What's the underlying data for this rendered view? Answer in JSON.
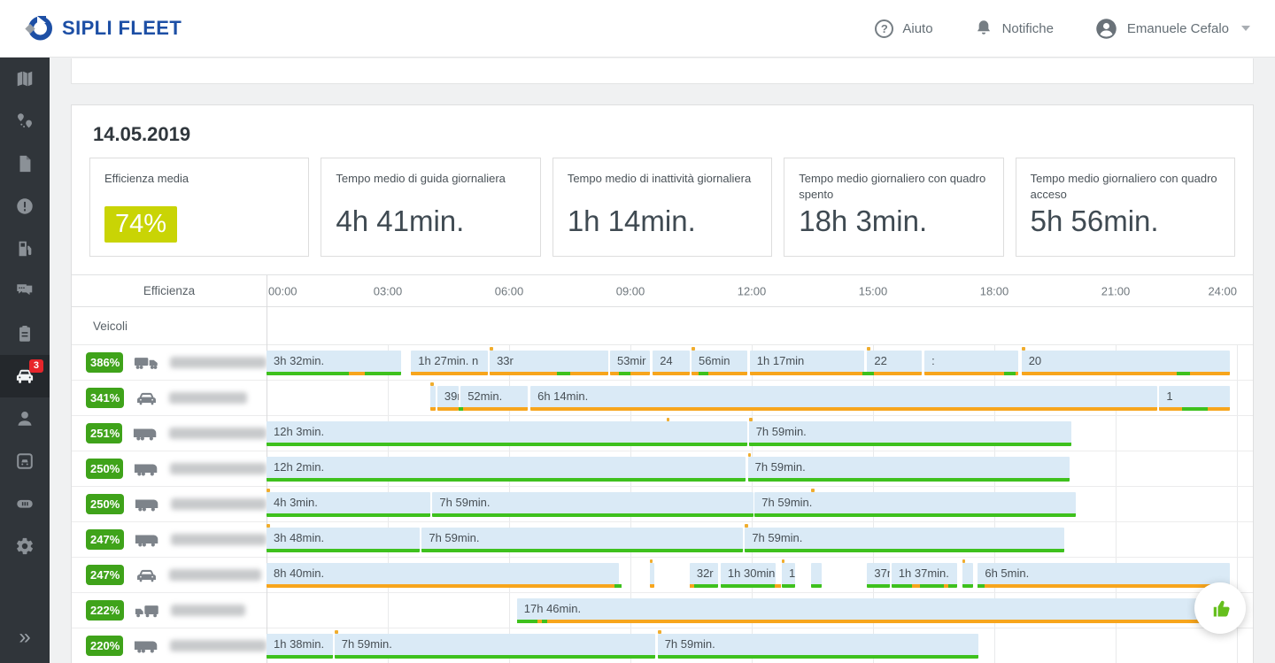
{
  "header": {
    "brand": "SIPLI FLEET",
    "help_label": "Aiuto",
    "notifications_label": "Notifiche",
    "user_name": "Emanuele Cefalo"
  },
  "sidebar": {
    "items": [
      {
        "id": "map",
        "icon": "map"
      },
      {
        "id": "routes",
        "icon": "route"
      },
      {
        "id": "documents",
        "icon": "document"
      },
      {
        "id": "alerts",
        "icon": "alert"
      },
      {
        "id": "fuel",
        "icon": "fuel"
      },
      {
        "id": "messages",
        "icon": "chat"
      },
      {
        "id": "reports",
        "icon": "clipboard"
      },
      {
        "id": "vehicles",
        "icon": "car",
        "active": true,
        "badge": "3"
      },
      {
        "id": "drivers",
        "icon": "person"
      },
      {
        "id": "fleet",
        "icon": "vehicle-square"
      },
      {
        "id": "cards",
        "icon": "tag"
      },
      {
        "id": "settings",
        "icon": "gear"
      }
    ],
    "collapse_glyph": "»"
  },
  "page": {
    "date": "14.05.2019",
    "cards": [
      {
        "title": "Efficienza media",
        "value": "74%",
        "style": "badge"
      },
      {
        "title": "Tempo medio di guida giornaliera",
        "value": "4h 41min."
      },
      {
        "title": "Tempo medio di inattività giornaliera",
        "value": "1h 14min."
      },
      {
        "title": "Tempo medio giornaliero con quadro spento",
        "value": "18h 3min."
      },
      {
        "title": "Tempo medio giornaliero con quadro acceso",
        "value": "5h 56min."
      }
    ],
    "timeline": {
      "efficiency_header": "Efficienza",
      "vehicles_header": "Veicoli",
      "hours": [
        "00:00",
        "03:00",
        "06:00",
        "09:00",
        "12:00",
        "15:00",
        "18:00",
        "21:00",
        "24:00"
      ]
    },
    "rows": [
      {
        "efficiency": "386%",
        "vehicle": "truck-trailer",
        "blur_width": 112,
        "segments": [
          {
            "l": 0,
            "w": 13.9,
            "t": "3h 32min.",
            "u": "green"
          },
          {
            "l": 14.9,
            "w": 7.9,
            "t": "1h 27min. n",
            "u": "orange"
          },
          {
            "l": 23.0,
            "w": 12.2,
            "t": "33r",
            "u": "orange"
          },
          {
            "l": 35.4,
            "w": 4.1,
            "t": "53mir",
            "u": "orange"
          },
          {
            "l": 39.8,
            "w": 3.8,
            "t": "24",
            "u": "orange"
          },
          {
            "l": 43.8,
            "w": 5.7,
            "t": "56min",
            "u": "orange"
          },
          {
            "l": 49.8,
            "w": 11.8,
            "t": "1h 17min",
            "u": "orange"
          },
          {
            "l": 61.9,
            "w": 5.6,
            "t": "22",
            "u": "orange"
          },
          {
            "l": 67.8,
            "w": 9.7,
            "t": ":",
            "u": "orange"
          },
          {
            "l": 77.8,
            "w": 21.5,
            "t": "20",
            "u": "orange"
          }
        ],
        "umarks": [
          {
            "l": 8.5,
            "w": 1.6,
            "c": "orange"
          },
          {
            "l": 29.9,
            "w": 1.4,
            "c": "green"
          },
          {
            "l": 36.3,
            "w": 1.2,
            "c": "green"
          },
          {
            "l": 44.5,
            "w": 1.0,
            "c": "green"
          },
          {
            "l": 61.4,
            "w": 1.2,
            "c": "green"
          },
          {
            "l": 76.0,
            "w": 1.2,
            "c": "green"
          },
          {
            "l": 93.8,
            "w": 1.4,
            "c": "green"
          }
        ],
        "tmarks": [
          {
            "l": 23.0,
            "w": 0.35
          },
          {
            "l": 43.8,
            "w": 0.35
          },
          {
            "l": 61.9,
            "w": 0.35
          },
          {
            "l": 77.8,
            "w": 0.35
          }
        ]
      },
      {
        "efficiency": "341%",
        "vehicle": "car",
        "blur_width": 88,
        "segments": [
          {
            "l": 16.9,
            "w": 0.5,
            "t": "",
            "u": "orange"
          },
          {
            "l": 17.6,
            "w": 2.2,
            "t": "39m",
            "u": "orange"
          },
          {
            "l": 20.0,
            "w": 6.9,
            "t": "52min.",
            "u": "orange"
          },
          {
            "l": 27.2,
            "w": 64.6,
            "t": "6h 14min.",
            "u": "orange"
          },
          {
            "l": 92.0,
            "w": 7.3,
            "t": "1",
            "u": "orange"
          }
        ],
        "umarks": [
          {
            "l": 19.8,
            "w": 0.5,
            "c": "green"
          },
          {
            "l": 94.3,
            "w": 2.7,
            "c": "green"
          }
        ],
        "tmarks": [
          {
            "l": 16.9,
            "w": 0.3
          }
        ]
      },
      {
        "efficiency": "251%",
        "vehicle": "van",
        "blur_width": 120,
        "segments": [
          {
            "l": 0,
            "w": 49.5,
            "t": "12h 3min.",
            "u": "green"
          },
          {
            "l": 49.7,
            "w": 33.2,
            "t": "7h 59min.",
            "u": "green"
          }
        ],
        "umarks": [],
        "tmarks": [
          {
            "l": 41.2,
            "w": 0.35
          },
          {
            "l": 49.7,
            "w": 0.35
          }
        ]
      },
      {
        "efficiency": "250%",
        "vehicle": "van",
        "blur_width": 114,
        "segments": [
          {
            "l": 0,
            "w": 49.4,
            "t": "12h 2min.",
            "u": "green"
          },
          {
            "l": 49.6,
            "w": 33.2,
            "t": "7h 59min.",
            "u": "green"
          }
        ],
        "umarks": [],
        "tmarks": [
          {
            "l": 49.6,
            "w": 0.35
          }
        ]
      },
      {
        "efficiency": "250%",
        "vehicle": "van",
        "blur_width": 110,
        "segments": [
          {
            "l": 0,
            "w": 16.9,
            "t": "4h 3min.",
            "u": "green"
          },
          {
            "l": 17.1,
            "w": 33.1,
            "t": "7h 59min.",
            "u": "green"
          },
          {
            "l": 50.3,
            "w": 33.1,
            "t": "7h 59min.",
            "u": "green"
          }
        ],
        "umarks": [],
        "tmarks": [
          {
            "l": 0,
            "w": 0.35
          },
          {
            "l": 56.1,
            "w": 0.35
          }
        ]
      },
      {
        "efficiency": "247%",
        "vehicle": "van",
        "blur_width": 110,
        "segments": [
          {
            "l": 0,
            "w": 15.8,
            "t": "3h 48min.",
            "u": "green"
          },
          {
            "l": 16.0,
            "w": 33.1,
            "t": "7h 59min.",
            "u": "green"
          },
          {
            "l": 49.3,
            "w": 32.9,
            "t": "7h 59min.",
            "u": "green"
          }
        ],
        "umarks": [],
        "tmarks": [
          {
            "l": 0,
            "w": 0.35
          },
          {
            "l": 49.3,
            "w": 0.35
          }
        ]
      },
      {
        "efficiency": "247%",
        "vehicle": "car",
        "blur_width": 104,
        "segments": [
          {
            "l": 0,
            "w": 36.3,
            "t": "8h 40min.",
            "u": "orange"
          },
          {
            "l": 39.5,
            "w": 0.5,
            "t": "",
            "u": "orange"
          },
          {
            "l": 43.6,
            "w": 2.9,
            "t": "32r",
            "u": "green"
          },
          {
            "l": 46.8,
            "w": 5.7,
            "t": "1h 30min.",
            "u": "green"
          },
          {
            "l": 53.1,
            "w": 1.4,
            "t": "1",
            "u": "green"
          },
          {
            "l": 56.1,
            "w": 1.1,
            "t": "",
            "u": "green"
          },
          {
            "l": 61.9,
            "w": 2.3,
            "t": "37n",
            "u": "green"
          },
          {
            "l": 64.4,
            "w": 6.8,
            "t": "1h 37min.",
            "u": "green"
          },
          {
            "l": 71.7,
            "w": 1.1,
            "t": "",
            "u": "green"
          },
          {
            "l": 73.3,
            "w": 26.0,
            "t": "6h 5min.",
            "u": "orange"
          }
        ],
        "umarks": [
          {
            "l": 35.9,
            "w": 0.7,
            "c": "green"
          },
          {
            "l": 43.6,
            "w": 0.5,
            "c": "orange"
          },
          {
            "l": 52.4,
            "w": 0.6,
            "c": "orange"
          },
          {
            "l": 66.5,
            "w": 0.8,
            "c": "orange"
          },
          {
            "l": 69.8,
            "w": 0.5,
            "c": "orange"
          },
          {
            "l": 73.3,
            "w": 0.7,
            "c": "green"
          }
        ],
        "tmarks": [
          {
            "l": 39.5,
            "w": 0.3
          },
          {
            "l": 53.1,
            "w": 0.3
          },
          {
            "l": 71.7,
            "w": 0.3
          }
        ]
      },
      {
        "efficiency": "222%",
        "vehicle": "truck",
        "blur_width": 84,
        "segments": [
          {
            "l": 25.8,
            "w": 73.5,
            "t": "17h 46min.",
            "u": "orange"
          }
        ],
        "umarks": [
          {
            "l": 25.8,
            "w": 2.1,
            "c": "green"
          },
          {
            "l": 28.4,
            "w": 0.5,
            "c": "green"
          }
        ],
        "tmarks": []
      },
      {
        "efficiency": "220%",
        "vehicle": "van",
        "blur_width": 114,
        "segments": [
          {
            "l": 0,
            "w": 6.8,
            "t": "1h 38min.",
            "u": "green"
          },
          {
            "l": 7.0,
            "w": 33.1,
            "t": "7h 59min.",
            "u": "green"
          },
          {
            "l": 40.3,
            "w": 33.1,
            "t": "7h 59min.",
            "u": "green"
          }
        ],
        "umarks": [],
        "tmarks": [
          {
            "l": 7.0,
            "w": 0.35
          },
          {
            "l": 40.3,
            "w": 0.35
          }
        ]
      }
    ]
  },
  "colors": {
    "green": "#3ec11d",
    "orange": "#f7a51c",
    "tick": "#f0ad2e",
    "bar_fill": "#daeaf6",
    "badge_green": "#3fa31a",
    "lime": "#c9d405",
    "brand_blue": "#1d4fa5",
    "alert_red": "#e7252b",
    "fab_green": "#65bf1d"
  }
}
